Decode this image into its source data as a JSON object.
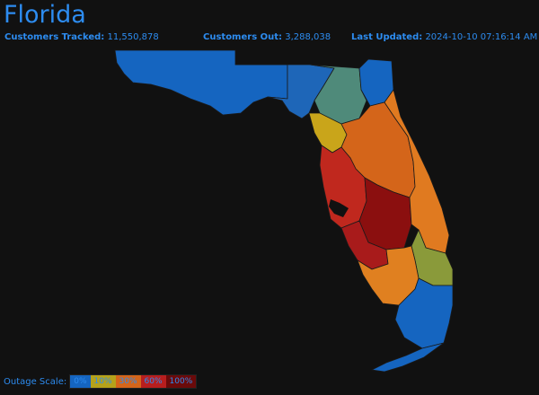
{
  "state_title": "Florida",
  "stats": {
    "tracked_label": "Customers Tracked:",
    "tracked_value": "11,550,878",
    "out_label": "Customers Out:",
    "out_value": "3,288,038",
    "updated_label": "Last Updated:",
    "updated_value": "2024-10-10 07:16:14 AM"
  },
  "legend": {
    "title": "Outage Scale:",
    "stops": [
      {
        "label": "0%",
        "color": "#1565c0"
      },
      {
        "label": "10%",
        "color": "#b5a21a"
      },
      {
        "label": "30%",
        "color": "#d4651a"
      },
      {
        "label": "60%",
        "color": "#b81e1e"
      },
      {
        "label": "100%",
        "color": "#6b0a0a"
      }
    ]
  },
  "colors": {
    "background": "#111111",
    "accent": "#2d8cf0",
    "county_stroke": "#1a1a1a"
  },
  "region_colors": {
    "panhandle": "#1565c0",
    "big_bend": "#1e66b8",
    "north_central": "#4f8a7a",
    "nature_coast": "#c9a51a",
    "tampa_bay": "#c0281e",
    "central_inland": "#d4651a",
    "polk_hardee": "#8b0f0f",
    "south_gulf": "#a81b1b",
    "southwest": "#e08020",
    "southeast": "#1565c0",
    "treasure_coast": "#8a9a3a",
    "space_coast": "#e07a20"
  }
}
